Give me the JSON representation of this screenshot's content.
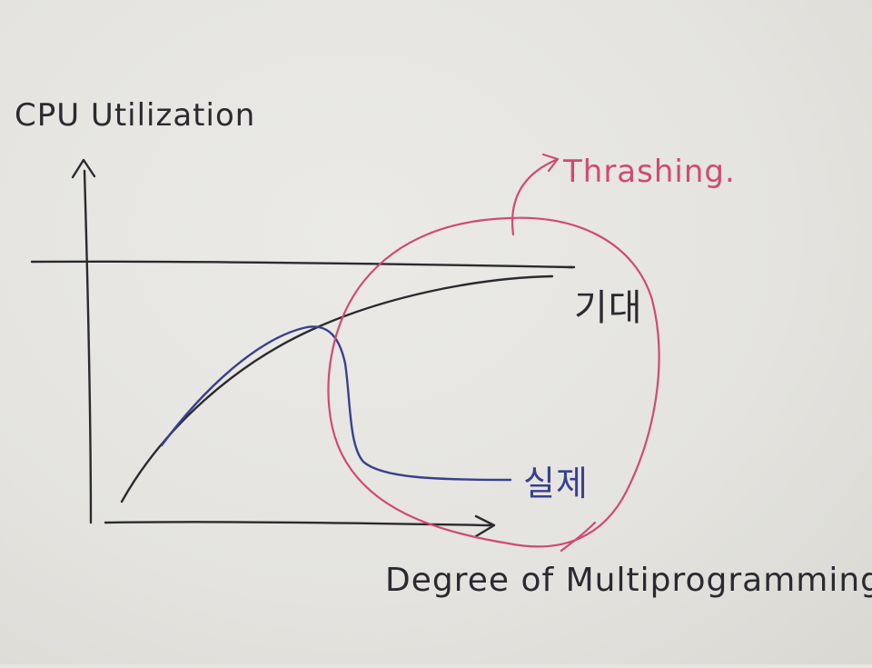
{
  "labels": {
    "y_axis": "CPU Utilization",
    "x_axis": "Degree of Multiprogramming.",
    "expected_curve": "기대",
    "actual_curve": "실제",
    "thrashing": "Thrashing."
  },
  "colors": {
    "ink_black": "#2b2a30",
    "ink_blue": "#3a3f8f",
    "ink_red": "#d04a72",
    "paper": "#e6e5e1"
  }
}
